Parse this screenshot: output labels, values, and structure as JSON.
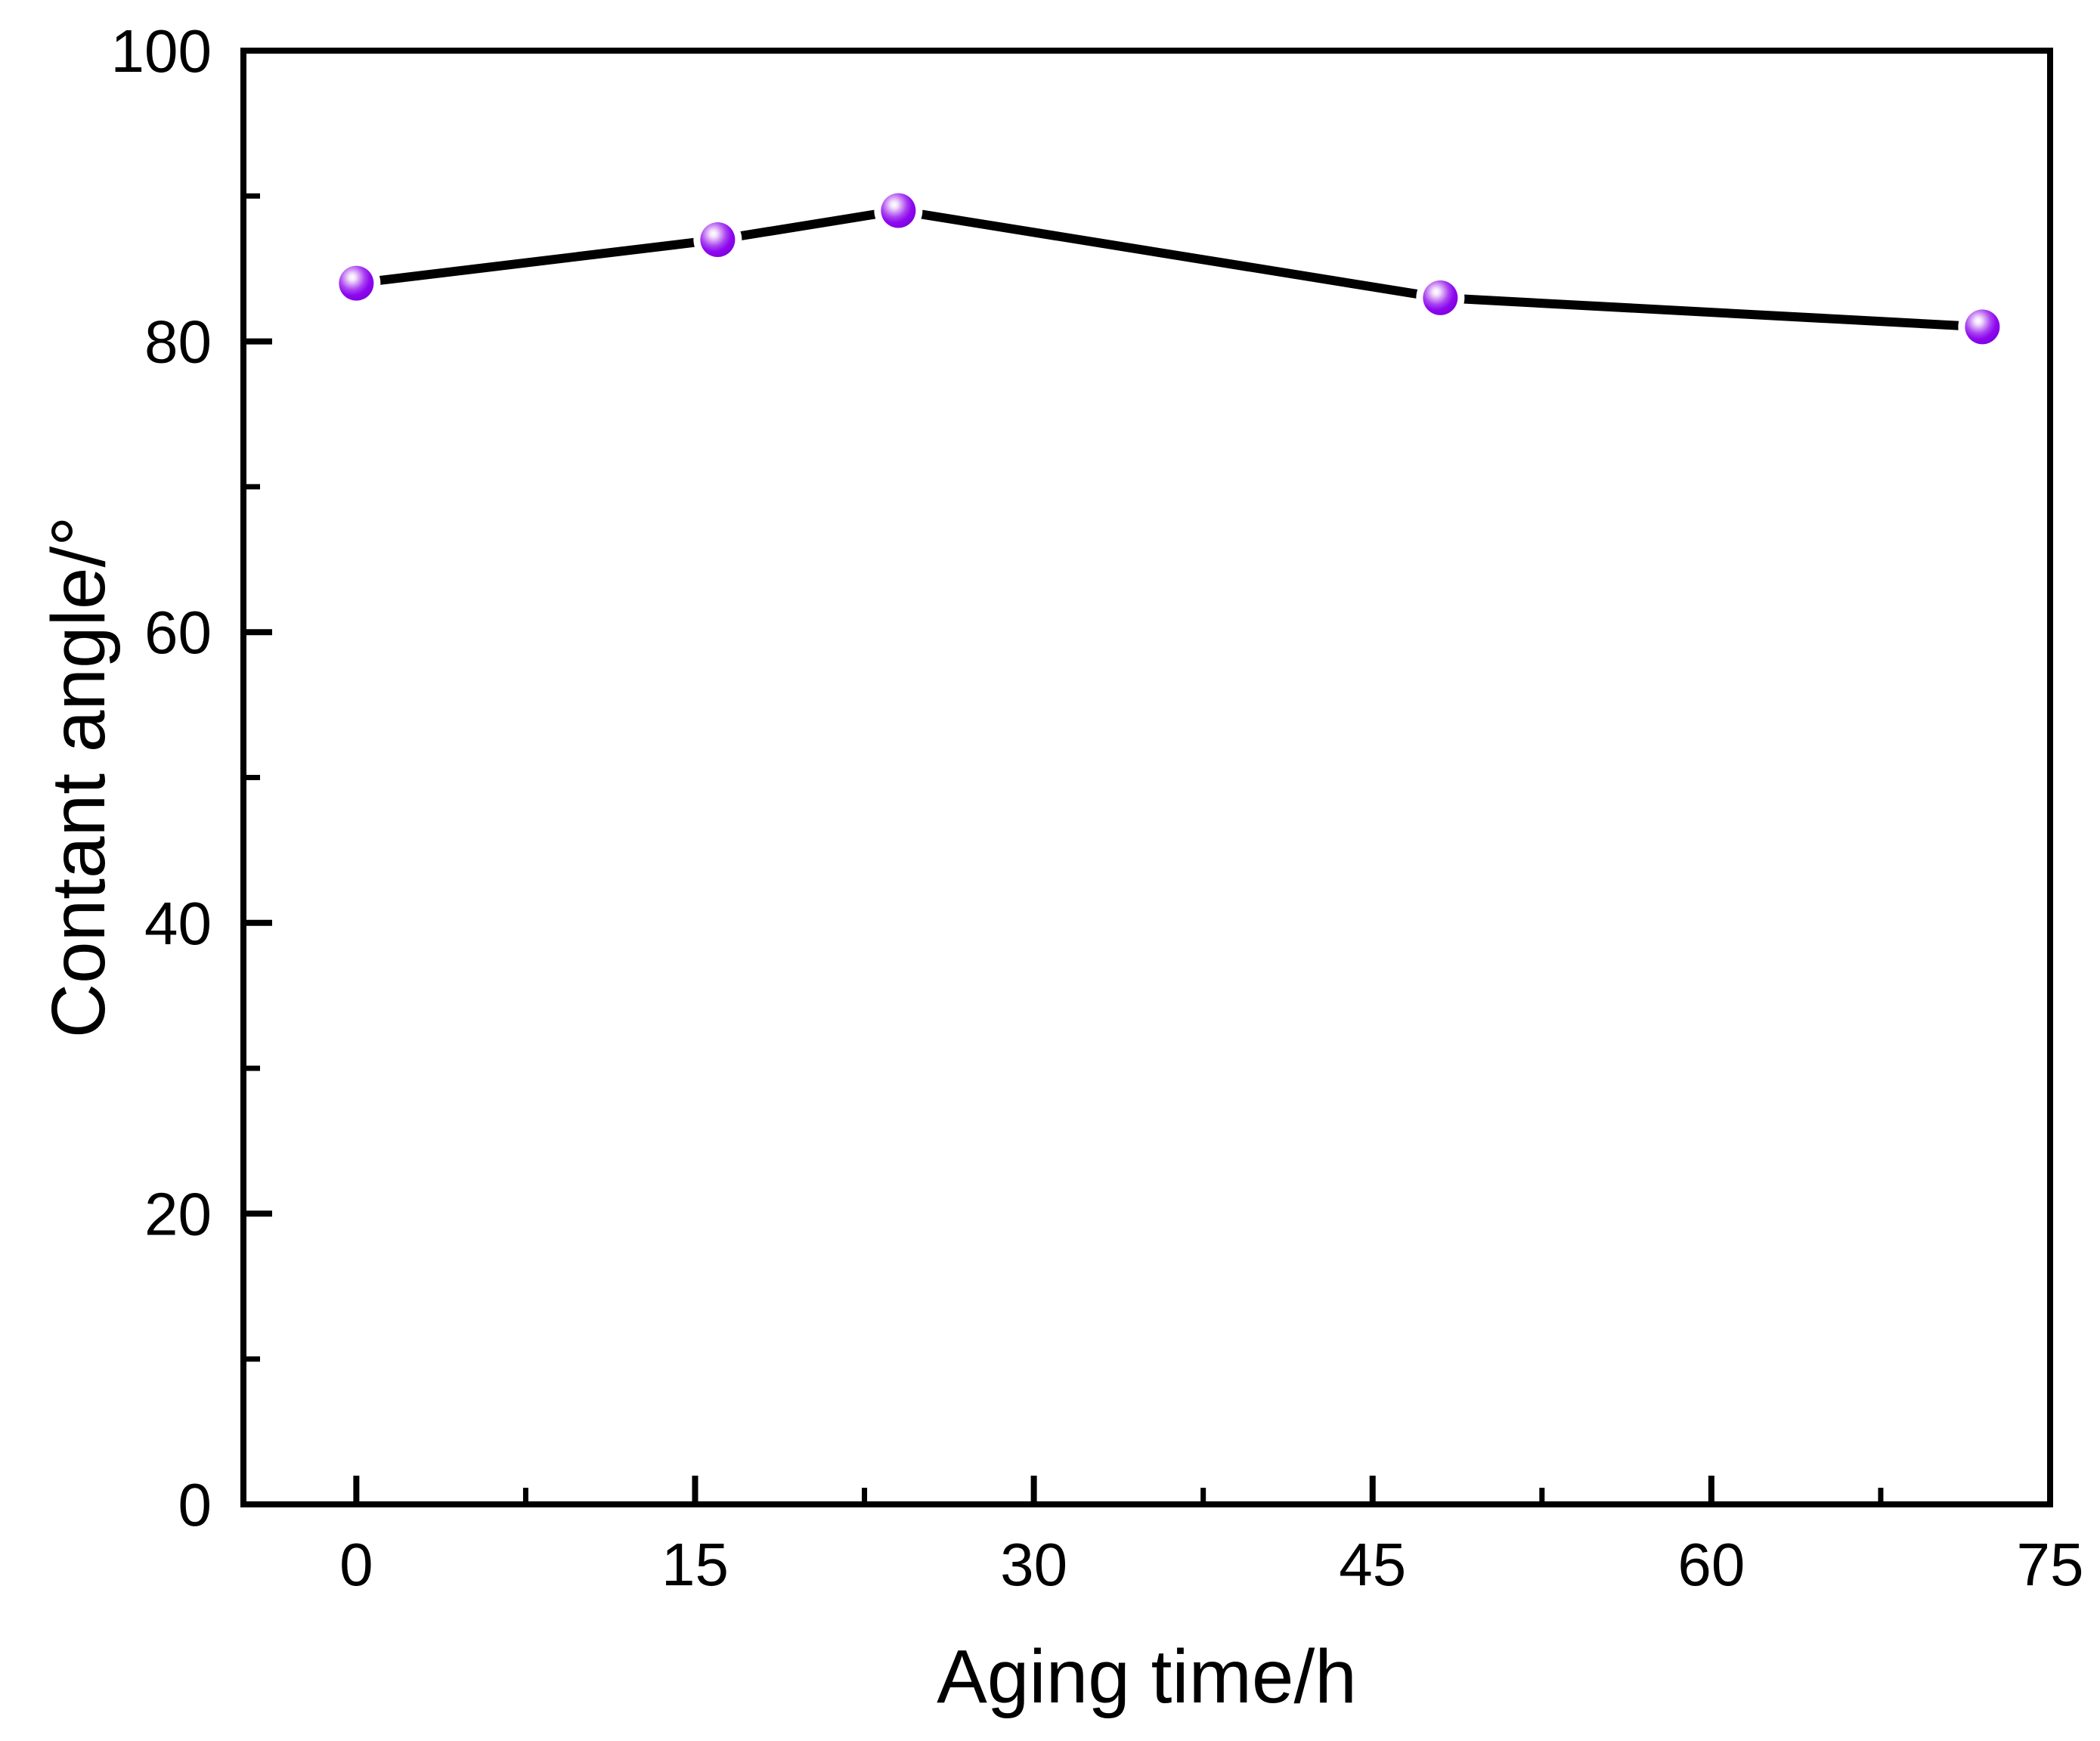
{
  "chart_data": {
    "type": "line",
    "title": "",
    "xlabel": "Aging time/h",
    "ylabel": "Contant angle/°",
    "x": [
      0,
      16,
      24,
      48,
      72
    ],
    "y": [
      84,
      87,
      89,
      83,
      81
    ],
    "x_ticks": [
      0,
      15,
      30,
      45,
      60,
      75
    ],
    "y_ticks": [
      0,
      20,
      40,
      60,
      80,
      100
    ],
    "x_minor_ticks": [
      7.5,
      22.5,
      37.5,
      52.5,
      67.5
    ],
    "y_minor_ticks": [
      10,
      30,
      50,
      70,
      90
    ],
    "xlim": [
      -5,
      75
    ],
    "ylim": [
      0,
      100
    ],
    "grid": false,
    "legend": "none",
    "line_color": "#000000",
    "axis_color": "#000000",
    "background_color": "#ffffff",
    "marker": {
      "shape": "sphere",
      "body_color": "#8E08F0",
      "edge_color": "#7E00DC",
      "highlight_color": "#FFFFFF",
      "halo_color": "#FFFFFF"
    }
  }
}
